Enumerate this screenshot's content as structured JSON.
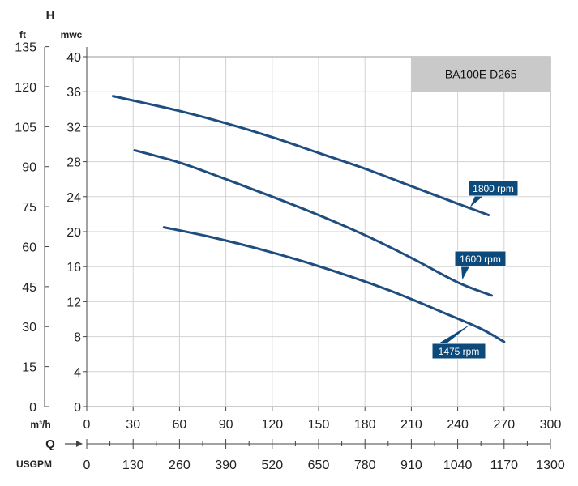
{
  "chart_data": {
    "type": "line",
    "model": "BA100E D265",
    "h_letter": "H",
    "q_letter": "Q",
    "y_unit_left": "ft",
    "y_unit_right": "mwc",
    "x_unit_top": "m³/h",
    "x_unit_bottom": "USGPM",
    "xlim": [
      0,
      300
    ],
    "ylim": [
      0,
      40
    ],
    "x_ticks": [
      "0",
      "30",
      "60",
      "90",
      "120",
      "150",
      "180",
      "210",
      "240",
      "270",
      "300"
    ],
    "x_ticks_usgpm": [
      "0",
      "130",
      "260",
      "390",
      "520",
      "650",
      "780",
      "910",
      "1040",
      "1170",
      "1300"
    ],
    "y_ticks_mwc": [
      "0",
      "4",
      "8",
      "12",
      "16",
      "20",
      "24",
      "28",
      "32",
      "36",
      "40"
    ],
    "y_ticks_ft": [
      "0",
      "15",
      "30",
      "45",
      "60",
      "75",
      "90",
      "105",
      "120",
      "135"
    ],
    "grid": true,
    "curve_color": "#1e4d7f",
    "label_color": "#0c4a7c",
    "model_box_color": "#c9c9c9",
    "series": [
      {
        "name": "1800 rpm",
        "points": [
          [
            17,
            35.5
          ],
          [
            40,
            34.6
          ],
          [
            60,
            33.8
          ],
          [
            90,
            32.4
          ],
          [
            120,
            30.8
          ],
          [
            150,
            29.0
          ],
          [
            180,
            27.2
          ],
          [
            210,
            25.2
          ],
          [
            240,
            23.2
          ],
          [
            260,
            21.9
          ]
        ]
      },
      {
        "name": "1600 rpm",
        "points": [
          [
            31,
            29.3
          ],
          [
            60,
            27.9
          ],
          [
            90,
            26.0
          ],
          [
            120,
            24.0
          ],
          [
            150,
            21.9
          ],
          [
            180,
            19.6
          ],
          [
            210,
            17.0
          ],
          [
            240,
            14.2
          ],
          [
            262,
            12.7
          ]
        ]
      },
      {
        "name": "1475 rpm",
        "points": [
          [
            50,
            20.5
          ],
          [
            80,
            19.4
          ],
          [
            110,
            18.1
          ],
          [
            140,
            16.6
          ],
          [
            170,
            14.9
          ],
          [
            200,
            13.0
          ],
          [
            230,
            10.8
          ],
          [
            255,
            8.9
          ],
          [
            270,
            7.4
          ]
        ]
      }
    ]
  }
}
